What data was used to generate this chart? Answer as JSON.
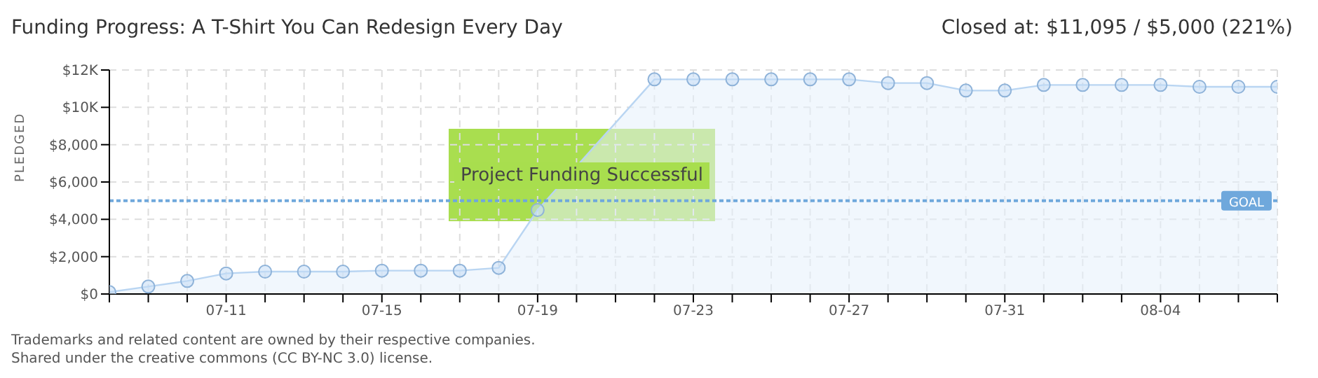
{
  "chart_data": {
    "type": "area",
    "title": "Funding Progress: A T-Shirt You Can Redesign Every Day",
    "subtitle": "Closed at: $11,095 / $5,000 (221%)",
    "ylabel": "PLEDGED",
    "categories": [
      null,
      null,
      null,
      "07-11",
      null,
      null,
      null,
      "07-15",
      null,
      null,
      null,
      "07-19",
      null,
      null,
      null,
      "07-23",
      null,
      null,
      null,
      "07-27",
      null,
      null,
      null,
      "07-31",
      null,
      null,
      null,
      "08-04",
      null,
      null,
      null
    ],
    "series": [
      {
        "color": "#b9d5f2",
        "values": [
          100,
          400,
          700,
          1100,
          1200,
          1200,
          1200,
          1250,
          1250,
          1250,
          1400,
          4500,
          null,
          null,
          11500,
          11500,
          11500,
          11500,
          11500,
          11500,
          11300,
          11300,
          10900,
          10900,
          11200,
          11200,
          11200,
          11200,
          11100,
          11100,
          11100
        ]
      }
    ],
    "ylim": [
      0,
      12000
    ],
    "yticks": [
      {
        "value": 0,
        "label": "$0"
      },
      {
        "value": 2000,
        "label": "$2,000"
      },
      {
        "value": 4000,
        "label": "$4,000"
      },
      {
        "value": 6000,
        "label": "$6,000"
      },
      {
        "value": 8000,
        "label": "$8,000"
      },
      {
        "value": 10000,
        "label": "$10K"
      },
      {
        "value": 12000,
        "label": "$12K"
      }
    ],
    "grid": true,
    "marker": "circle",
    "ref_lines": [
      {
        "axis": "y",
        "value": 5000,
        "label": "GOAL",
        "color": "#6fa8dc",
        "line_style": "dotted"
      }
    ],
    "annotations": [
      "Project Funding Successful",
      "Trademarks and related content are owned by their respective companies.",
      "Shared under the creative commons (CC BY-NC 3.0) license."
    ]
  }
}
